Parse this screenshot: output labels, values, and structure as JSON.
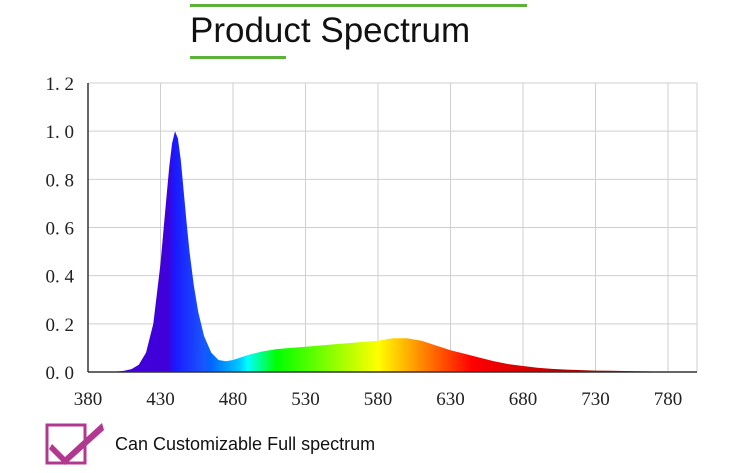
{
  "header": {
    "title": "Product Spectrum",
    "accent_color": "#5bb13a"
  },
  "chart_data": {
    "type": "area",
    "title": "",
    "xlabel": "",
    "ylabel": "",
    "xlim": [
      380,
      800
    ],
    "ylim": [
      0,
      1.2
    ],
    "x_ticks": [
      "380",
      "430",
      "480",
      "530",
      "580",
      "630",
      "680",
      "730",
      "780"
    ],
    "y_ticks": [
      "0.0",
      "0.2",
      "0.4",
      "0.6",
      "0.8",
      "1.0",
      "1.2"
    ],
    "grid": true,
    "fill": "spectral wavelength colors",
    "series": [
      {
        "x": [
          400,
          405,
          410,
          415,
          420,
          425,
          430,
          433,
          436,
          438,
          440,
          442,
          444,
          446,
          448,
          450,
          453,
          456,
          460,
          465,
          470,
          475,
          480,
          485,
          490,
          500,
          510,
          520,
          530,
          540,
          550,
          560,
          570,
          580,
          590,
          600,
          610,
          620,
          630,
          640,
          650,
          660,
          670,
          680,
          690,
          700,
          710,
          720,
          730,
          740,
          750,
          760,
          770,
          780,
          790
        ],
        "y": [
          0.002,
          0.005,
          0.012,
          0.03,
          0.08,
          0.2,
          0.45,
          0.65,
          0.85,
          0.95,
          1.0,
          0.97,
          0.88,
          0.75,
          0.62,
          0.5,
          0.36,
          0.25,
          0.15,
          0.08,
          0.05,
          0.045,
          0.05,
          0.06,
          0.07,
          0.085,
          0.095,
          0.1,
          0.105,
          0.11,
          0.115,
          0.12,
          0.125,
          0.13,
          0.14,
          0.14,
          0.13,
          0.11,
          0.09,
          0.075,
          0.06,
          0.045,
          0.033,
          0.025,
          0.018,
          0.013,
          0.01,
          0.008,
          0.006,
          0.005,
          0.004,
          0.003,
          0.002,
          0.001,
          0.001
        ]
      }
    ]
  },
  "feature": {
    "label": "Can Customizable Full spectrum",
    "icon": "checkbox-checked-icon",
    "icon_color": "#b2388f"
  }
}
